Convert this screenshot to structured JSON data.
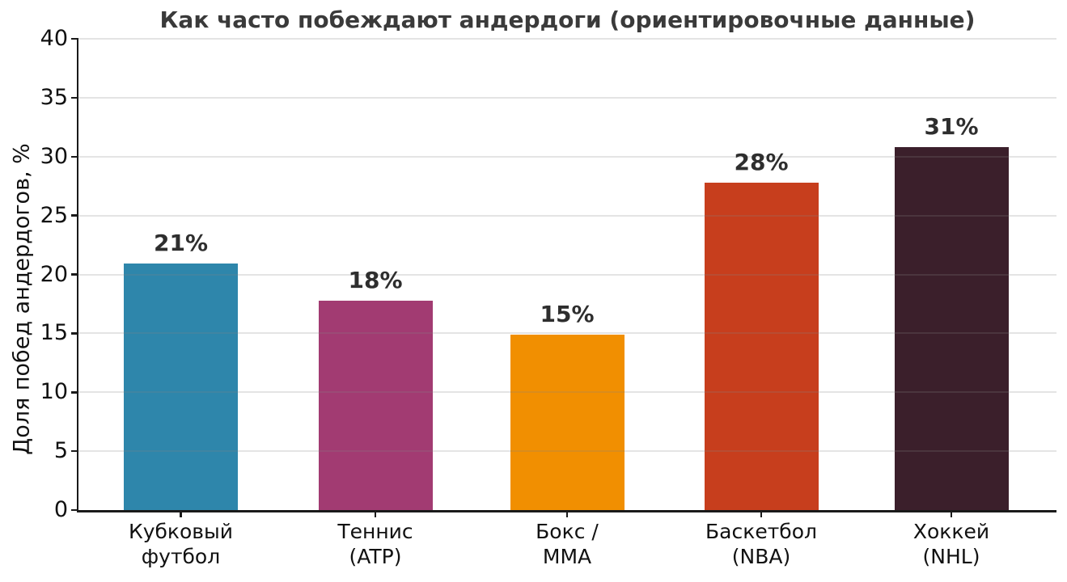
{
  "chart_data": {
    "type": "bar",
    "title": "Как часто побеждают андердоги (ориентировочные данные)",
    "ylabel": "Доля побед андердогов, %",
    "xlabel": "",
    "categories": [
      [
        "Кубковый",
        "футбол"
      ],
      [
        "Теннис",
        "(ATP)"
      ],
      [
        "Бокс /",
        "MMA"
      ],
      [
        "Баскетбол",
        "(NBA)"
      ],
      [
        "Хоккей",
        "(NHL)"
      ]
    ],
    "values": [
      20.9,
      17.8,
      14.9,
      27.8,
      30.8
    ],
    "bar_labels": [
      "21%",
      "18%",
      "15%",
      "28%",
      "31%"
    ],
    "bar_colors": [
      "#2E86AB",
      "#A23B72",
      "#F18F01",
      "#C73E1D",
      "#3B1F2B"
    ],
    "ylim": [
      0,
      40
    ],
    "yticks": [
      0,
      5,
      10,
      15,
      20,
      25,
      30,
      35,
      40
    ],
    "grid": "horizontal",
    "gridline_color": "#E8E8E8",
    "legend": "none",
    "background": "#FFFFFF",
    "title_color": "#3A3A3A",
    "tick_color": "#111111",
    "value_label_color": "#2E2E2E"
  }
}
